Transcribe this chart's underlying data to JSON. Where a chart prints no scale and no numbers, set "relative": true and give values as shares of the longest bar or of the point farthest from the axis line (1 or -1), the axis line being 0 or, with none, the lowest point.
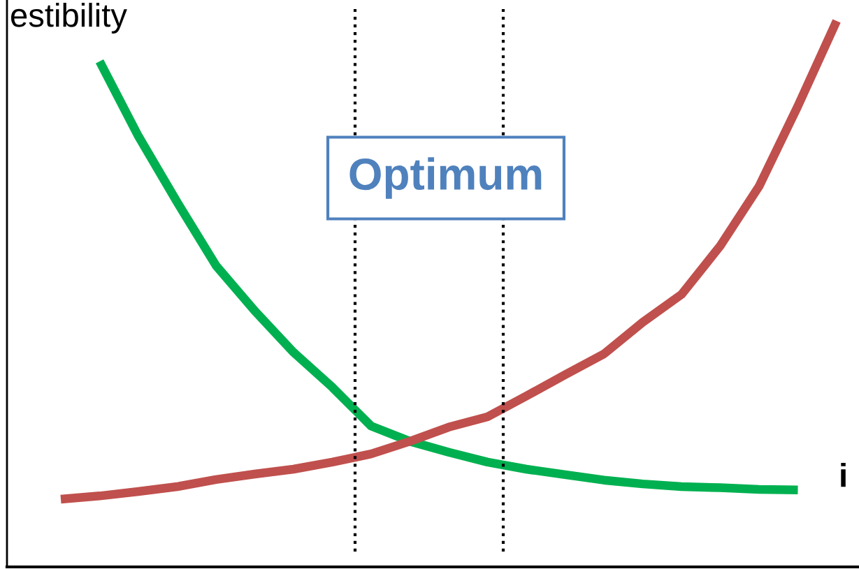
{
  "chart_data": {
    "type": "line",
    "relative": true,
    "ylabel": "estibility",
    "xlabel": "i",
    "categories": [
      null,
      null,
      null,
      null,
      null,
      null,
      null,
      null,
      null,
      null,
      null,
      null,
      null,
      null,
      null,
      null,
      null,
      null,
      null,
      null,
      null
    ],
    "series": [
      {
        "color": "#00b050",
        "values": [
          null,
          0.926,
          0.789,
          0.668,
          0.552,
          0.469,
          0.393,
          0.329,
          0.258,
          0.23,
          0.21,
          0.192,
          0.179,
          0.169,
          0.159,
          0.152,
          0.147,
          0.145,
          0.142,
          0.141,
          null
        ]
      },
      {
        "color": "#c0504d",
        "values": [
          0.124,
          0.13,
          0.138,
          0.147,
          0.16,
          0.17,
          0.179,
          0.192,
          0.207,
          0.23,
          0.256,
          0.275,
          0.313,
          0.352,
          0.39,
          0.448,
          0.499,
          0.588,
          0.697,
          0.844,
          1.0
        ]
      }
    ],
    "annotations": [
      "Optimum"
    ],
    "legend": false,
    "line_style": "solid",
    "marker": "none"
  }
}
